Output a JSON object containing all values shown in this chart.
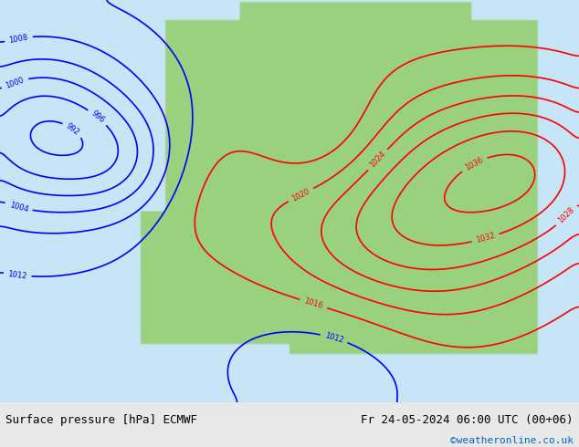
{
  "title_left": "Surface pressure [hPa] ECMWF",
  "title_right": "Fr 24-05-2024 06:00 UTC (00+06)",
  "credit": "©weatheronline.co.uk",
  "background_map": "#b3d9a0",
  "background_sea": "#d8eaf5",
  "background_fig": "#e8e8e8",
  "contour_interval": 4,
  "pressure_min": 988,
  "pressure_max": 1036,
  "footer_bg": "#d8d8d8",
  "footer_text_color": "#000000",
  "credit_color": "#0066cc"
}
